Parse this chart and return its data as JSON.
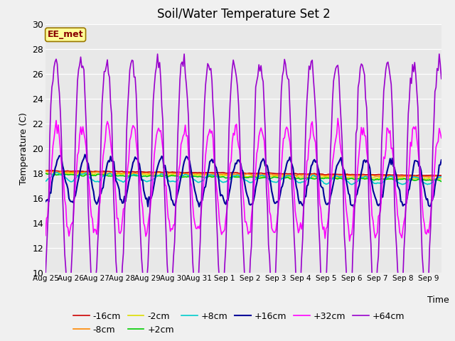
{
  "title": "Soil/Water Temperature Set 2",
  "xlabel": "Time",
  "ylabel": "Temperature (C)",
  "ylim": [
    10,
    30
  ],
  "background_color": "#e8e8e8",
  "fig_bg": "#f0f0f0",
  "watermark": "EE_met",
  "series": {
    "-16cm": {
      "color": "#cc0000",
      "lw": 1.2
    },
    "-8cm": {
      "color": "#ff8800",
      "lw": 1.2
    },
    "-2cm": {
      "color": "#dddd00",
      "lw": 1.2
    },
    "+2cm": {
      "color": "#00cc00",
      "lw": 1.2
    },
    "+8cm": {
      "color": "#00cccc",
      "lw": 1.2
    },
    "+16cm": {
      "color": "#000099",
      "lw": 1.5
    },
    "+32cm": {
      "color": "#ff00ff",
      "lw": 1.2
    },
    "+64cm": {
      "color": "#9900cc",
      "lw": 1.2
    }
  },
  "tick_dates": [
    "Aug 25",
    "Aug 26",
    "Aug 27",
    "Aug 28",
    "Aug 29",
    "Aug 30",
    "Aug 31",
    "Sep 1",
    "Sep 2",
    "Sep 3",
    "Sep 4",
    "Sep 5",
    "Sep 6",
    "Sep 7",
    "Sep 8",
    "Sep 9"
  ],
  "yticks": [
    10,
    12,
    14,
    16,
    18,
    20,
    22,
    24,
    26,
    28,
    30
  ]
}
